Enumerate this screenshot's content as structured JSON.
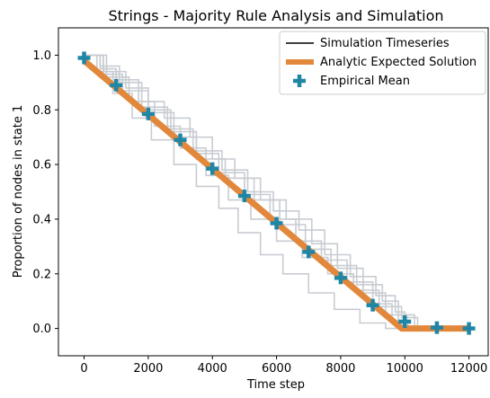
{
  "chart_data": {
    "type": "line",
    "title": "Strings - Majority Rule Analysis and Simulation",
    "xlabel": "Time step",
    "ylabel": "Proportion of nodes in state 1",
    "xlim": [
      -800,
      12600
    ],
    "ylim": [
      -0.1,
      1.1
    ],
    "x_ticks": [
      0,
      2000,
      4000,
      6000,
      8000,
      10000,
      12000
    ],
    "x_tick_labels": [
      "0",
      "2000",
      "4000",
      "6000",
      "8000",
      "10000",
      "12000"
    ],
    "y_ticks": [
      0.0,
      0.2,
      0.4,
      0.6,
      0.8,
      1.0
    ],
    "y_tick_labels": [
      "0.0",
      "0.2",
      "0.4",
      "0.6",
      "0.8",
      "1.0"
    ],
    "grid": false,
    "legend_position": "top-right",
    "legend": [
      {
        "label": "Simulation Timeseries",
        "style": "thin-line",
        "color": "#000000"
      },
      {
        "label": "Analytic Expected Solution",
        "style": "thick-line",
        "color": "#e2883c"
      },
      {
        "label": "Empirical Mean",
        "style": "plus-marker",
        "color": "#1f86a6"
      }
    ],
    "series": [
      {
        "name": "Analytic Expected Solution",
        "color": "#e2883c",
        "x": [
          0,
          9900,
          12000
        ],
        "y": [
          0.98,
          0.0,
          0.0
        ]
      },
      {
        "name": "Empirical Mean",
        "color": "#1f86a6",
        "x": [
          0,
          1000,
          2000,
          3000,
          4000,
          5000,
          6000,
          7000,
          8000,
          9000,
          10000,
          11000,
          12000
        ],
        "y": [
          0.99,
          0.89,
          0.785,
          0.69,
          0.585,
          0.485,
          0.385,
          0.28,
          0.185,
          0.085,
          0.025,
          0.003,
          0.0
        ]
      },
      {
        "name": "Simulation Timeseries",
        "color": "#c8ccd2",
        "runs": [
          {
            "x": [
              0,
              600,
              1200,
              2000,
              2800,
              3500,
              4200,
              5000,
              5800,
              6600,
              7400,
              8200,
              9000,
              9600,
              10100,
              12000
            ],
            "y": [
              1.0,
              0.93,
              0.87,
              0.79,
              0.7,
              0.64,
              0.57,
              0.49,
              0.4,
              0.32,
              0.25,
              0.17,
              0.09,
              0.03,
              0.0,
              0.0
            ]
          },
          {
            "x": [
              0,
              500,
              1000,
              1700,
              2500,
              3300,
              4000,
              4700,
              5500,
              6300,
              7100,
              7900,
              8700,
              9400,
              9800,
              12000
            ],
            "y": [
              1.0,
              0.95,
              0.91,
              0.83,
              0.77,
              0.7,
              0.62,
              0.55,
              0.47,
              0.4,
              0.31,
              0.22,
              0.13,
              0.05,
              0.0,
              0.0
            ]
          },
          {
            "x": [
              0,
              700,
              1400,
              2200,
              3000,
              3800,
              4500,
              5200,
              6000,
              6800,
              7600,
              8400,
              9200,
              9900,
              10400,
              12000
            ],
            "y": [
              1.0,
              0.92,
              0.83,
              0.74,
              0.66,
              0.56,
              0.47,
              0.4,
              0.32,
              0.26,
              0.2,
              0.14,
              0.08,
              0.04,
              0.0,
              0.0
            ]
          },
          {
            "x": [
              0,
              400,
              900,
              1500,
              2100,
              2800,
              3500,
              4200,
              4800,
              5500,
              6200,
              7000,
              7800,
              8600,
              9400,
              12000
            ],
            "y": [
              1.0,
              0.94,
              0.86,
              0.77,
              0.69,
              0.6,
              0.52,
              0.44,
              0.35,
              0.27,
              0.2,
              0.13,
              0.07,
              0.02,
              0.0,
              0.0
            ]
          },
          {
            "x": [
              0,
              500,
              1100,
              1800,
              2600,
              3400,
              4300,
              5100,
              5900,
              6700,
              7500,
              8300,
              9100,
              9700,
              10000,
              12000
            ],
            "y": [
              1.0,
              0.96,
              0.9,
              0.81,
              0.73,
              0.65,
              0.58,
              0.5,
              0.43,
              0.36,
              0.27,
              0.19,
              0.12,
              0.06,
              0.0,
              0.0
            ]
          },
          {
            "x": [
              0,
              600,
              1300,
              2000,
              2700,
              3500,
              4400,
              5300,
              6100,
              6900,
              7700,
              8500,
              9300,
              9800,
              10300,
              12000
            ],
            "y": [
              1.0,
              0.94,
              0.88,
              0.8,
              0.72,
              0.62,
              0.55,
              0.47,
              0.38,
              0.29,
              0.23,
              0.16,
              0.1,
              0.05,
              0.0,
              0.0
            ]
          }
        ]
      }
    ]
  }
}
